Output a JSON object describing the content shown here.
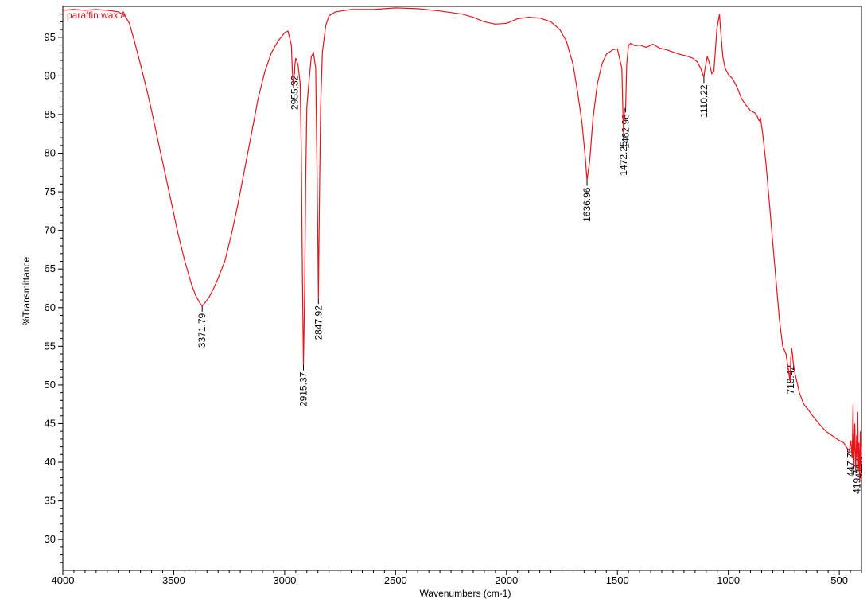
{
  "chart_data": {
    "type": "line",
    "sample_label": "paraffin wax A",
    "xlabel": "Wavenumbers (cm-1)",
    "ylabel": "%Transmittance",
    "xlim": [
      4000,
      400
    ],
    "ylim": [
      26,
      99
    ],
    "x_reversed": true,
    "grid": false,
    "x_ticks": [
      4000,
      3500,
      3000,
      2500,
      2000,
      1500,
      1000,
      500
    ],
    "y_ticks": [
      30,
      35,
      40,
      45,
      50,
      55,
      60,
      65,
      70,
      75,
      80,
      85,
      90,
      95
    ],
    "line_color": "#e8141c",
    "series": [
      {
        "x": [
          4000,
          3950,
          3900,
          3850,
          3800,
          3750,
          3720,
          3700,
          3680,
          3650,
          3620,
          3600,
          3570,
          3540,
          3510,
          3480,
          3450,
          3420,
          3400,
          3380,
          3371.79,
          3360,
          3340,
          3320,
          3300,
          3270,
          3240,
          3210,
          3180,
          3150,
          3120,
          3090,
          3060,
          3030,
          3000,
          2985,
          2970,
          2965,
          2960,
          2955.32,
          2950,
          2940,
          2930,
          2925,
          2920,
          2915.37,
          2910,
          2905,
          2900,
          2890,
          2880,
          2870,
          2860,
          2855,
          2850,
          2847.92,
          2844,
          2838,
          2830,
          2815,
          2800,
          2770,
          2700,
          2600,
          2500,
          2400,
          2300,
          2200,
          2150,
          2100,
          2050,
          2000,
          1950,
          1900,
          1850,
          1800,
          1760,
          1730,
          1700,
          1680,
          1660,
          1645,
          1636.96,
          1625,
          1610,
          1590,
          1570,
          1550,
          1520,
          1500,
          1480,
          1475,
          1472.25,
          1468,
          1462.96,
          1458,
          1450,
          1440,
          1420,
          1400,
          1370,
          1340,
          1310,
          1280,
          1250,
          1220,
          1190,
          1160,
          1140,
          1125,
          1115,
          1110.22,
          1105,
          1095,
          1085,
          1075,
          1065,
          1058,
          1052,
          1046,
          1040,
          1035,
          1025,
          1015,
          1000,
          980,
          960,
          940,
          920,
          900,
          880,
          870,
          862,
          855,
          845,
          830,
          815,
          800,
          785,
          770,
          755,
          740,
          730,
          725,
          722,
          718.42,
          715,
          712,
          708,
          700,
          690,
          680,
          660,
          640,
          620,
          600,
          580,
          560,
          540,
          520,
          500,
          480,
          465,
          455,
          447.75,
          442,
          438,
          434,
          430,
          426,
          422,
          419.77,
          417,
          414,
          411.57,
          408,
          405,
          402,
          400
        ],
        "y": [
          98.5,
          98.6,
          98.5,
          98.6,
          98.5,
          98.3,
          97.8,
          96.8,
          94.8,
          91.5,
          88.0,
          85.5,
          81.5,
          77.5,
          73.5,
          69.5,
          66.0,
          63.0,
          61.5,
          60.5,
          60.2,
          60.6,
          61.4,
          62.5,
          63.8,
          66.0,
          69.5,
          73.5,
          78.0,
          82.5,
          87.0,
          90.5,
          93.0,
          94.5,
          95.6,
          95.8,
          94.0,
          90.5,
          88.5,
          91.0,
          92.3,
          91.5,
          89.0,
          80.0,
          64.0,
          52.6,
          62.0,
          77.0,
          86.0,
          89.5,
          92.5,
          93.0,
          91.0,
          80.0,
          68.0,
          61.2,
          72.0,
          86.0,
          93.0,
          96.5,
          97.8,
          98.3,
          98.6,
          98.6,
          98.8,
          98.7,
          98.4,
          98.0,
          97.6,
          97.0,
          96.7,
          96.8,
          97.4,
          97.6,
          97.5,
          97.0,
          96.0,
          94.5,
          91.5,
          88.0,
          84.0,
          79.5,
          76.5,
          79.0,
          84.5,
          89.0,
          91.5,
          92.8,
          93.4,
          93.5,
          91.0,
          85.0,
          82.5,
          85.5,
          86.0,
          91.5,
          94.0,
          94.2,
          93.9,
          94.0,
          93.7,
          94.1,
          93.6,
          93.4,
          93.1,
          92.8,
          92.6,
          92.3,
          91.8,
          91.0,
          90.2,
          89.8,
          91.0,
          92.5,
          91.6,
          90.3,
          90.6,
          93.5,
          96.0,
          97.0,
          98.0,
          96.0,
          92.5,
          91.0,
          90.2,
          89.6,
          88.5,
          87.0,
          86.2,
          85.5,
          85.2,
          84.8,
          84.2,
          84.5,
          82.5,
          78.5,
          73.5,
          68.5,
          63.5,
          58.5,
          55.0,
          54.0,
          52.0,
          51.0,
          50.5,
          53.5,
          54.8,
          54.2,
          53.0,
          51.5,
          50.3,
          49.0,
          47.5,
          46.8,
          46.0,
          45.3,
          44.6,
          44.0,
          43.6,
          43.2,
          42.8,
          42.5,
          41.8,
          41.5,
          42.8,
          40.5,
          47.5,
          39.5,
          45.0,
          38.9,
          43.5,
          40.6,
          46.5,
          38.8,
          42.5,
          37.6,
          44.0,
          39.0,
          42.0
        ]
      }
    ],
    "peak_labels": [
      {
        "x": 3371.79,
        "text": "3371.79"
      },
      {
        "x": 2955.32,
        "text": "2955.32"
      },
      {
        "x": 2915.37,
        "text": "2915.37"
      },
      {
        "x": 2847.92,
        "text": "2847.92"
      },
      {
        "x": 1636.96,
        "text": "1636.96"
      },
      {
        "x": 1472.25,
        "text": "1472.25"
      },
      {
        "x": 1462.96,
        "text": "1462.96"
      },
      {
        "x": 1110.22,
        "text": "1110.22"
      },
      {
        "x": 718.42,
        "text": "718.42"
      },
      {
        "x": 447.75,
        "text": "447.75"
      },
      {
        "x": 419.77,
        "text": "419.77"
      },
      {
        "x": 411.57,
        "text": "411.57"
      }
    ]
  }
}
